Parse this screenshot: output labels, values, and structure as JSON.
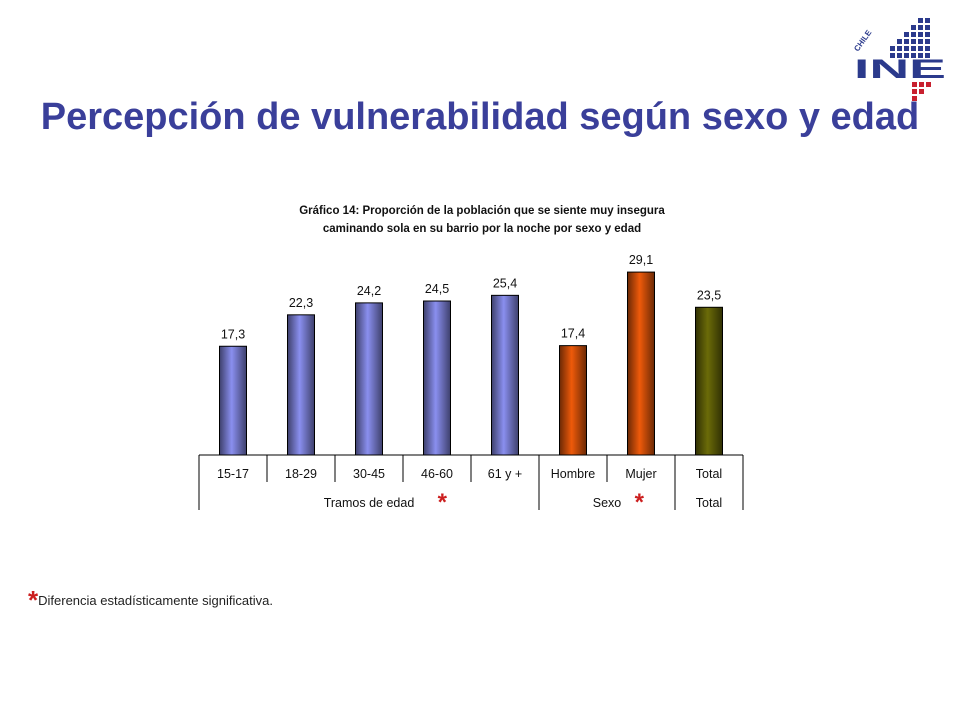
{
  "slide": {
    "title": "Percepción de vulnerabilidad según sexo y edad",
    "footnote_marker": "*",
    "footnote_text": "Diferencia estadísticamente significativa."
  },
  "logo": {
    "country": "CHILE",
    "acronym": "INE",
    "primary_color": "#2b3a8c",
    "accent_color": "#c8202f"
  },
  "chart_data": {
    "type": "bar",
    "title": "Gráfico 14: Proporción de la población que se siente muy insegura caminando sola en su barrio por la noche por sexo y edad",
    "title_lines": [
      "Gráfico 14: Proporción de la población que se siente muy insegura",
      "caminando sola en su barrio por la noche por sexo y edad"
    ],
    "categories": [
      "15-17",
      "18-29",
      "30-45",
      "46-60",
      "61 y +",
      "Hombre",
      "Mujer",
      "Total"
    ],
    "values": [
      17.3,
      22.3,
      24.2,
      24.5,
      25.4,
      17.4,
      29.1,
      23.5
    ],
    "value_labels": [
      "17,3",
      "22,3",
      "24,2",
      "24,5",
      "25,4",
      "17,4",
      "29,1",
      "23,5"
    ],
    "groups": [
      {
        "label": "Tramos de edad",
        "categories": [
          "15-17",
          "18-29",
          "30-45",
          "46-60",
          "61 y +"
        ],
        "significance": "*",
        "color": "#8a8fef"
      },
      {
        "label": "Sexo",
        "categories": [
          "Hombre",
          "Mujer"
        ],
        "significance": "*",
        "color": "#ee5a0a"
      },
      {
        "label": "Total",
        "categories": [
          "Total"
        ],
        "significance": "",
        "color": "#6b6b08"
      }
    ],
    "ylim": [
      0,
      35
    ],
    "grid": false,
    "legend": "none"
  }
}
